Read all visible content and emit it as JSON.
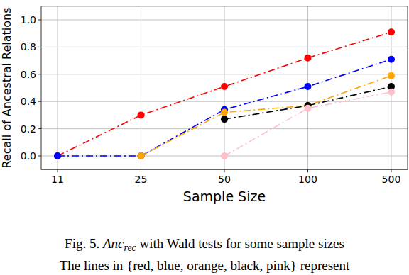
{
  "chart_data": {
    "type": "line",
    "x_label": "Sample Size",
    "y_label": "Recall of Ancestral Relations",
    "categories": [
      "11",
      "25",
      "50",
      "100",
      "500"
    ],
    "series": [
      {
        "color": "#ff0000",
        "values": [
          0.0,
          0.3,
          0.51,
          0.72,
          0.91
        ]
      },
      {
        "color": "#0000ff",
        "values": [
          0.0,
          0.0,
          0.34,
          0.51,
          0.71
        ]
      },
      {
        "color": "#ffa500",
        "values": [
          null,
          0.0,
          0.32,
          0.37,
          0.59
        ]
      },
      {
        "color": "#000000",
        "values": [
          null,
          null,
          0.27,
          0.37,
          0.51
        ]
      },
      {
        "color": "#ffc0cb",
        "values": [
          null,
          null,
          0.0,
          0.35,
          0.47
        ]
      }
    ],
    "ylim": [
      -0.1,
      1.1
    ],
    "yticks": [
      {
        "value": 0,
        "label": "0.0"
      },
      0.2,
      0.4,
      0.6,
      0.8,
      {
        "value": 1,
        "label": "1.0"
      }
    ],
    "grid": true,
    "marker": "circle",
    "line_style": "dashdot"
  },
  "caption": {
    "label": "Fig. 5.",
    "math": "Anc",
    "math_sub": "rec",
    "text": "with Wald tests for some sample sizes",
    "line2": "The lines in {red, blue, orange, black, pink} represent"
  }
}
